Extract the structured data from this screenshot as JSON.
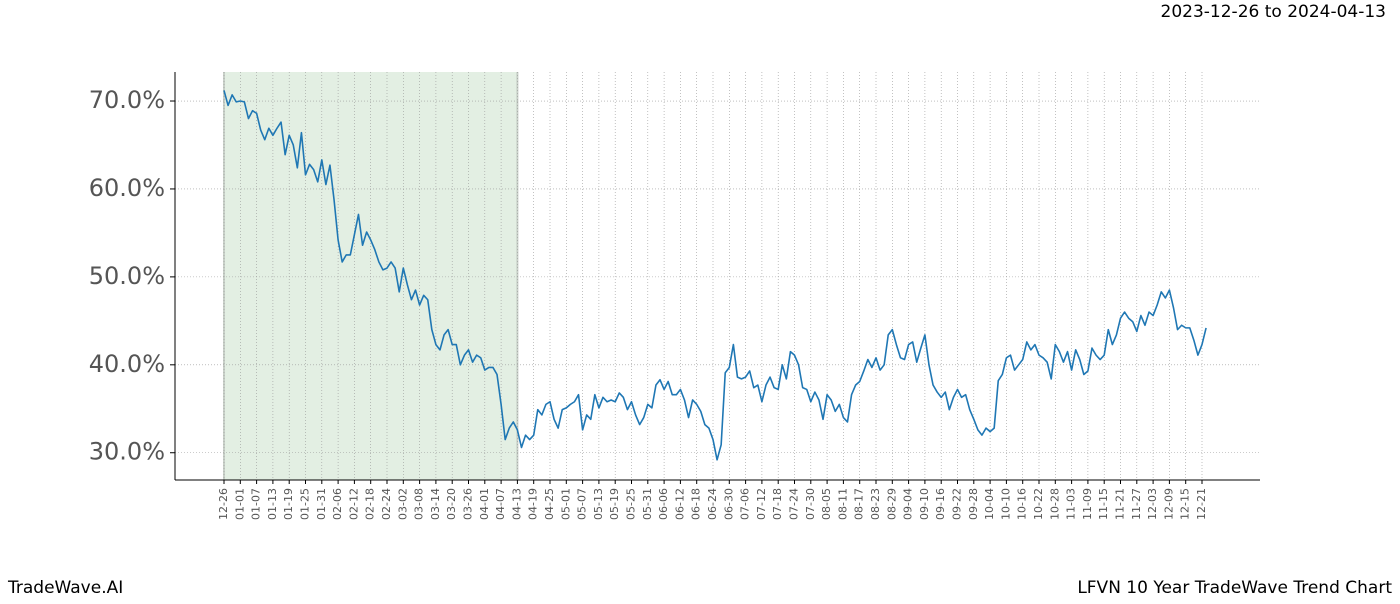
{
  "header": {
    "date_range": "2023-12-26 to 2024-04-13"
  },
  "footer": {
    "left": "TradeWave.AI",
    "right": "LFVN 10 Year TradeWave Trend Chart"
  },
  "chart_data": {
    "type": "line",
    "categories": [
      "12-26",
      null,
      null,
      null,
      "01-01",
      null,
      null,
      null,
      "01-07",
      null,
      null,
      null,
      "01-13",
      null,
      null,
      null,
      "01-19",
      null,
      null,
      null,
      "01-25",
      null,
      null,
      null,
      "01-31",
      null,
      null,
      null,
      "02-06",
      null,
      null,
      null,
      "02-12",
      null,
      null,
      null,
      "02-18",
      null,
      null,
      null,
      "02-24",
      null,
      null,
      null,
      "03-02",
      null,
      null,
      null,
      "03-08",
      null,
      null,
      null,
      "03-14",
      null,
      null,
      null,
      "03-20",
      null,
      null,
      null,
      "03-26",
      null,
      null,
      null,
      "04-01",
      null,
      null,
      null,
      "04-07",
      null,
      null,
      null,
      "04-13",
      null,
      null,
      null,
      "04-19",
      null,
      null,
      null,
      "04-25",
      null,
      null,
      null,
      "05-01",
      null,
      null,
      null,
      "05-07",
      null,
      null,
      null,
      "05-13",
      null,
      null,
      null,
      "05-19",
      null,
      null,
      null,
      "05-25",
      null,
      null,
      null,
      "05-31",
      null,
      null,
      null,
      "06-06",
      null,
      null,
      null,
      "06-12",
      null,
      null,
      null,
      "06-18",
      null,
      null,
      null,
      "06-24",
      null,
      null,
      null,
      "06-30",
      null,
      null,
      null,
      "07-06",
      null,
      null,
      null,
      "07-12",
      null,
      null,
      null,
      "07-18",
      null,
      null,
      null,
      "07-24",
      null,
      null,
      null,
      "07-30",
      null,
      null,
      null,
      "08-05",
      null,
      null,
      null,
      "08-11",
      null,
      null,
      null,
      "08-17",
      null,
      null,
      null,
      "08-23",
      null,
      null,
      null,
      "08-29",
      null,
      null,
      null,
      "09-04",
      null,
      null,
      null,
      "09-10",
      null,
      null,
      null,
      "09-16",
      null,
      null,
      null,
      "09-22",
      null,
      null,
      null,
      "09-28",
      null,
      null,
      null,
      "10-04",
      null,
      null,
      null,
      "10-10",
      null,
      null,
      null,
      "10-16",
      null,
      null,
      null,
      "10-22",
      null,
      null,
      null,
      "10-28",
      null,
      null,
      null,
      "11-03",
      null,
      null,
      null,
      "11-09",
      null,
      null,
      null,
      "11-15",
      null,
      null,
      null,
      "11-21",
      null,
      null,
      null,
      "11-27",
      null,
      null,
      null,
      "12-03",
      null,
      null,
      null,
      "12-09",
      null,
      null,
      null,
      "12-15",
      null,
      null,
      null,
      "12-21",
      null
    ],
    "series": [
      {
        "color": "#1f77b4",
        "values": [
          71.2,
          69.5,
          70.7,
          69.9,
          70.0,
          69.9,
          68.0,
          68.9,
          68.6,
          66.7,
          65.6,
          66.9,
          66.1,
          66.9,
          67.6,
          63.9,
          66.1,
          65.0,
          62.4,
          66.4,
          61.6,
          62.8,
          62.2,
          60.8,
          63.3,
          60.5,
          62.7,
          58.8,
          54.2,
          51.7,
          52.5,
          52.5,
          54.8,
          57.1,
          53.6,
          55.1,
          54.2,
          53.1,
          51.7,
          50.8,
          51.0,
          51.7,
          51.0,
          48.3,
          51.0,
          49.1,
          47.4,
          48.5,
          46.8,
          47.9,
          47.4,
          44.0,
          42.3,
          41.7,
          43.4,
          44.0,
          42.3,
          42.3,
          40.0,
          41.1,
          41.7,
          40.3,
          41.1,
          40.8,
          39.4,
          39.7,
          39.7,
          38.9,
          35.5,
          31.5,
          32.8,
          33.5,
          32.6,
          30.6,
          32.0,
          31.5,
          32.0,
          34.9,
          34.3,
          35.5,
          35.8,
          33.8,
          32.8,
          34.9,
          35.1,
          35.5,
          35.8,
          36.6,
          32.6,
          34.3,
          33.8,
          36.6,
          35.1,
          36.3,
          35.8,
          36.0,
          35.8,
          36.8,
          36.3,
          34.9,
          35.8,
          34.3,
          33.2,
          34.0,
          35.5,
          35.1,
          37.7,
          38.3,
          37.2,
          38.1,
          36.6,
          36.6,
          37.2,
          36.0,
          34.0,
          36.0,
          35.5,
          34.7,
          33.2,
          32.8,
          31.5,
          29.2,
          30.9,
          39.1,
          39.7,
          42.3,
          38.6,
          38.4,
          38.6,
          39.3,
          37.4,
          37.7,
          35.8,
          37.7,
          38.6,
          37.4,
          37.2,
          40.0,
          38.4,
          41.5,
          41.1,
          40.0,
          37.4,
          37.2,
          35.8,
          36.9,
          36.0,
          33.8,
          36.6,
          36.0,
          34.7,
          35.5,
          34.0,
          33.5,
          36.6,
          37.7,
          38.1,
          39.3,
          40.6,
          39.7,
          40.8,
          39.4,
          40.0,
          43.4,
          44.0,
          42.3,
          40.8,
          40.6,
          42.3,
          42.6,
          40.3,
          41.9,
          43.4,
          40.0,
          37.7,
          36.9,
          36.3,
          36.9,
          34.9,
          36.3,
          37.2,
          36.3,
          36.6,
          34.9,
          33.8,
          32.6,
          32.0,
          32.8,
          32.4,
          32.8,
          38.2,
          38.9,
          40.8,
          41.1,
          39.4,
          40.0,
          40.6,
          42.6,
          41.7,
          42.3,
          41.1,
          40.8,
          40.3,
          38.4,
          42.3,
          41.5,
          40.3,
          41.5,
          39.4,
          41.7,
          40.6,
          38.9,
          39.3,
          41.9,
          41.1,
          40.6,
          41.1,
          44.0,
          42.3,
          43.4,
          45.3,
          46.0,
          45.3,
          44.9,
          43.8,
          45.6,
          44.5,
          46.0,
          45.6,
          46.8,
          48.3,
          47.6,
          48.5,
          46.5,
          44.0,
          44.5,
          44.2,
          44.2,
          42.8,
          41.1,
          42.3,
          44.2
        ]
      }
    ],
    "ylim": [
      26.9,
      73.3
    ],
    "yticks": [
      {
        "value": 30,
        "label": "30.0%"
      },
      {
        "value": 40,
        "label": "40.0%"
      },
      {
        "value": 50,
        "label": "50.0%"
      },
      {
        "value": 60,
        "label": "60.0%"
      },
      {
        "value": 70,
        "label": "70.0%"
      }
    ],
    "grid": true,
    "highlight": {
      "from": "12-26",
      "to": "04-13",
      "color": "#e3efe3"
    }
  }
}
